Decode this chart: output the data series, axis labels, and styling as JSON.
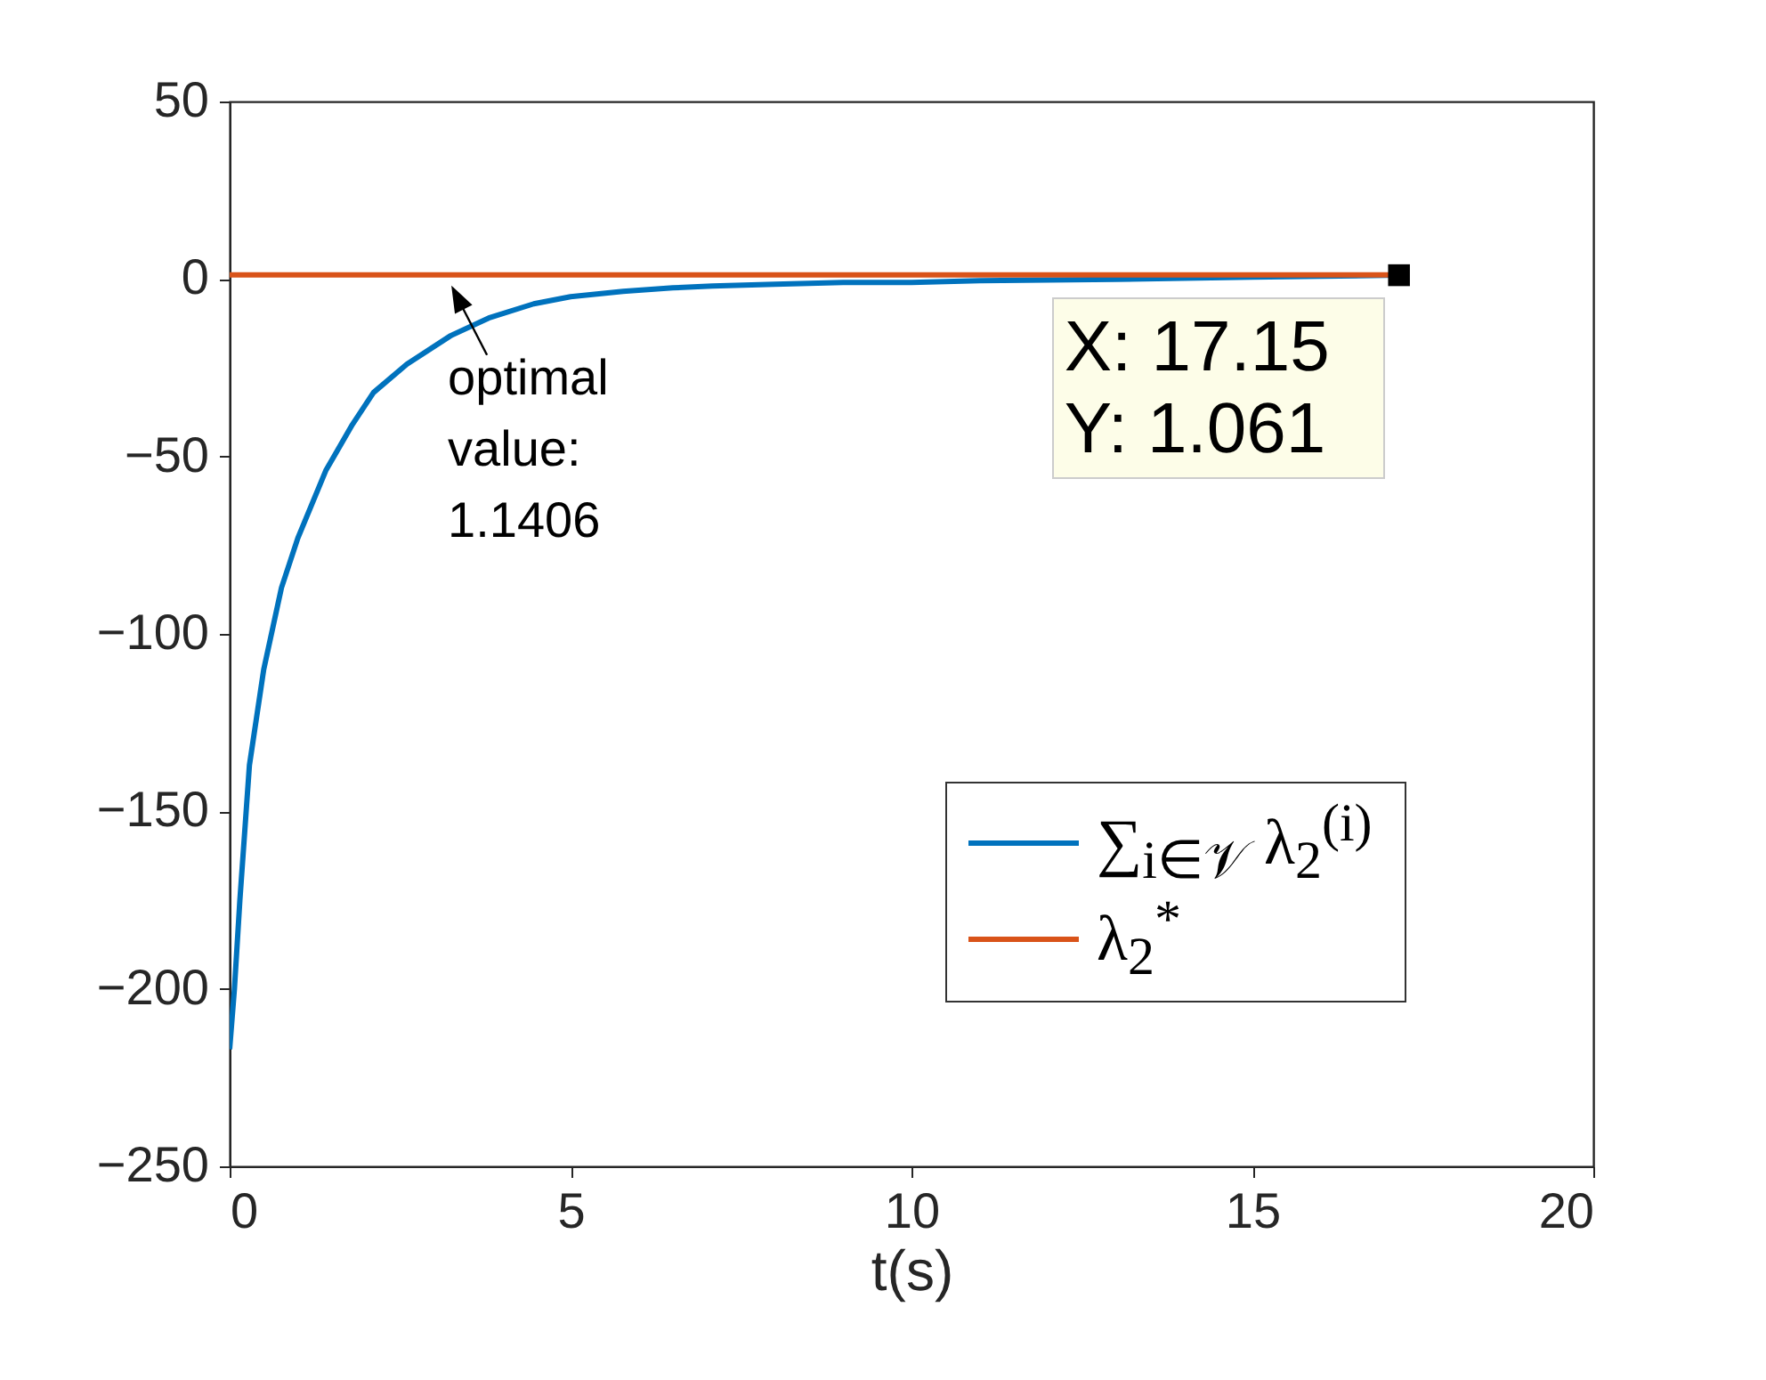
{
  "chart_data": {
    "type": "line",
    "xlabel": "t(s)",
    "series": [
      {
        "name": "∑$_{i∈𝒱}$ λ$_{2}$$^{(i)}$",
        "color": "#0072bd",
        "x": [
          0,
          0.07,
          0.15,
          0.29,
          0.5,
          0.76,
          1.0,
          1.41,
          1.8,
          2.11,
          2.6,
          3.24,
          3.8,
          4.46,
          5.0,
          5.77,
          6.5,
          7.08,
          8,
          9,
          10,
          11,
          12,
          13,
          14,
          15,
          16,
          17.15
        ],
        "values": [
          -217,
          -200,
          -175,
          -137,
          -110,
          -87,
          -73,
          -54,
          -41,
          -32,
          -24,
          -16,
          -11,
          -7,
          -5,
          -3.5,
          -2.5,
          -2,
          -1.5,
          -1,
          -1,
          -0.5,
          -0.3,
          -0.1,
          0.2,
          0.5,
          0.8,
          1.061
        ]
      },
      {
        "name": "λ$_{2}$$^{*}$",
        "color": "#d95319",
        "x": [
          0,
          17.15
        ],
        "values": [
          1.1406,
          1.1406
        ]
      }
    ],
    "xlim": [
      0,
      20
    ],
    "xticks": [
      0,
      5,
      10,
      15,
      20
    ],
    "ylim": [
      -250,
      50
    ],
    "yticks": [
      -250,
      -200,
      -150,
      -100,
      -50,
      0,
      50
    ],
    "legend": "bottom right",
    "annotations": [
      {
        "text": "optimal\nvalue:\n1.1406",
        "x": 3.2,
        "y": 1.1406
      },
      {
        "text": "X: 17.15\nY: 1.061",
        "x": 17.15,
        "y": 1.061
      }
    ]
  }
}
